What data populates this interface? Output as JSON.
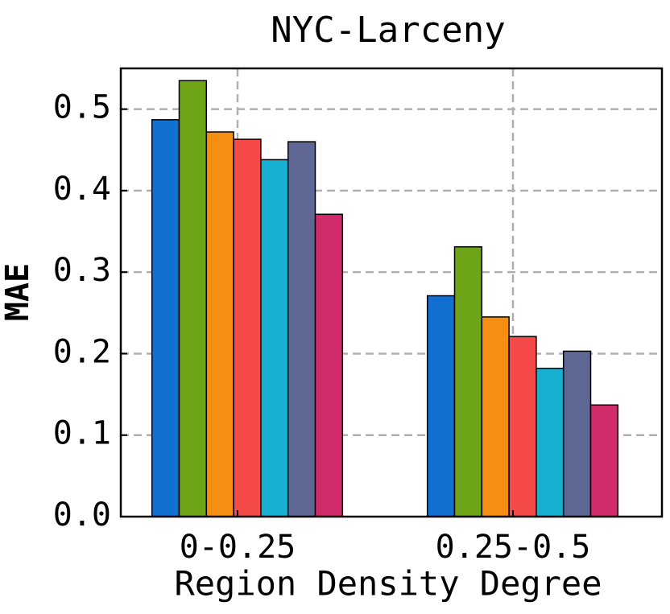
{
  "chart_data": {
    "type": "bar",
    "title": "NYC-Larceny",
    "x_label": "Region Density Degree",
    "y_label": "MAE",
    "categories": [
      "0-0.25",
      "0.25-0.5"
    ],
    "series": [
      {
        "color": "#1170d0",
        "values": [
          0.487,
          0.271
        ]
      },
      {
        "color": "#6ea418",
        "values": [
          0.535,
          0.331
        ]
      },
      {
        "color": "#f78e14",
        "values": [
          0.472,
          0.245
        ]
      },
      {
        "color": "#f64a4a",
        "values": [
          0.463,
          0.221
        ]
      },
      {
        "color": "#17b0d0",
        "values": [
          0.438,
          0.182
        ]
      },
      {
        "color": "#5f6795",
        "values": [
          0.46,
          0.203
        ]
      },
      {
        "color": "#d02c6c",
        "values": [
          0.371,
          0.137
        ]
      }
    ],
    "ylim": [
      0,
      0.55
    ],
    "yticks": [
      {
        "value": 0,
        "label": "0.0"
      },
      0.1,
      0.2,
      0.3,
      0.4,
      0.5
    ],
    "grid": true
  }
}
